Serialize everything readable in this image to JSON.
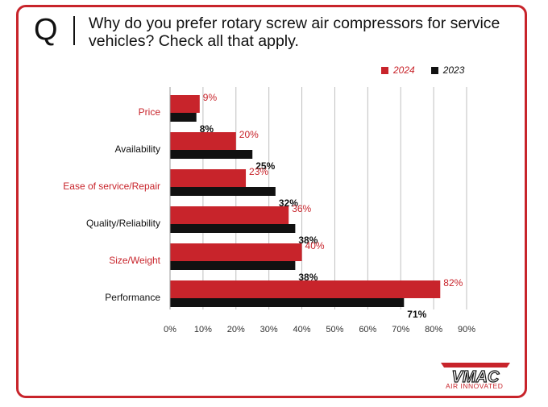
{
  "header": {
    "q_mark": "Q",
    "question": "Why do you prefer rotary screw air compressors for service vehicles? Check all that apply."
  },
  "logo": {
    "brand": "VMAC",
    "tagline": "AIR INNOVATED"
  },
  "colors": {
    "accent": "#c8242b",
    "dark": "#111111",
    "grid": "#bfbfbf"
  },
  "chart_data": {
    "type": "bar",
    "orientation": "horizontal",
    "categories": [
      "Price",
      "Availability",
      "Ease of service/Repair",
      "Quality/Reliability",
      "Size/Weight",
      "Performance"
    ],
    "category_colors": [
      "#c8242b",
      "#111111",
      "#c8242b",
      "#111111",
      "#c8242b",
      "#111111"
    ],
    "series": [
      {
        "name": "2024",
        "values": [
          9,
          20,
          23,
          36,
          40,
          82
        ],
        "labels": [
          "9%",
          "20%",
          "23%",
          "36%",
          "40%",
          "82%"
        ],
        "color": "#c8242b"
      },
      {
        "name": "2023",
        "values": [
          8,
          25,
          32,
          38,
          38,
          71
        ],
        "labels": [
          "8%",
          "25%",
          "32%",
          "38%",
          "38%",
          "71%"
        ],
        "color": "#111111"
      }
    ],
    "xlim": [
      0,
      90
    ],
    "xticks": [
      0,
      10,
      20,
      30,
      40,
      50,
      60,
      70,
      80,
      90
    ],
    "xtick_labels": [
      "0%",
      "10%",
      "20%",
      "30%",
      "40%",
      "50%",
      "60%",
      "70%",
      "80%",
      "90%"
    ],
    "grid": true,
    "legend_position": "top-right"
  }
}
